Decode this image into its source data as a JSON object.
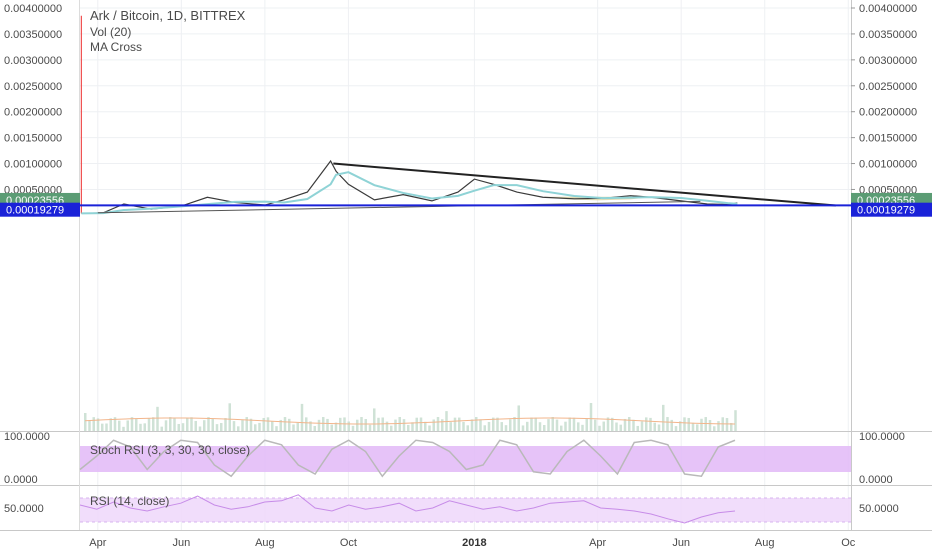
{
  "header": {
    "title": "Ark / Bitcoin, 1D, BITTREX",
    "indicators": [
      "Vol (20)",
      "MA Cross"
    ]
  },
  "colors": {
    "grid": "#eef0f3",
    "price_line": "#e9e9e9",
    "support_line": "#1a22d8",
    "trendline": "#222222",
    "stoch_band": "#e2b9f7",
    "rsi_band": "#efd9fb",
    "indicator_line": "#b9b9b9",
    "rsi_line": "#c78ce8",
    "current_badge": "#5b9c74",
    "support_badge": "#1a22d8",
    "candle_line": "#3a3a3a",
    "cup_fill": "#d9d29a",
    "ma_line": "#8fd3d6",
    "volume": "#cfe2d6",
    "volume_ma": "#f2b58b",
    "spike": "#f04e4e"
  },
  "chart_data": {
    "type": "line",
    "title": "Ark / Bitcoin, 1D, BITTREX",
    "price_axis": {
      "ticks": [
        "0.00400000",
        "0.00350000",
        "0.00300000",
        "0.00250000",
        "0.00200000",
        "0.00150000",
        "0.00100000",
        "0.00050000"
      ],
      "tick_values": [
        0.004,
        0.0035,
        0.003,
        0.0025,
        0.002,
        0.0015,
        0.001,
        0.0005
      ],
      "ylim": [
        0.0,
        0.0041
      ],
      "current_price": "0.00023556",
      "support_level": "0.00019279"
    },
    "time_axis": {
      "labels": [
        "Apr",
        "Jun",
        "Aug",
        "Oct",
        "2018",
        "Apr",
        "Jun",
        "Aug",
        "Oc"
      ],
      "bold_label": "2018"
    },
    "price_series": {
      "name": "ARK/BTC",
      "x": [
        "2017-03-20",
        "2017-04-05",
        "2017-04-20",
        "2017-05-10",
        "2017-06-01",
        "2017-06-20",
        "2017-07-10",
        "2017-08-01",
        "2017-08-15",
        "2017-09-01",
        "2017-09-18",
        "2017-09-22",
        "2017-10-01",
        "2017-10-20",
        "2017-11-10",
        "2017-12-01",
        "2017-12-20",
        "2018-01-01",
        "2018-01-15",
        "2018-02-01",
        "2018-02-20",
        "2018-03-15",
        "2018-04-05",
        "2018-04-25",
        "2018-05-10",
        "2018-06-01",
        "2018-06-20",
        "2018-07-05",
        "2018-07-12"
      ],
      "y": [
        4e-05,
        5e-05,
        0.00022,
        0.00012,
        0.00018,
        0.00035,
        0.00025,
        0.0002,
        0.0003,
        0.00045,
        0.00105,
        0.00085,
        0.0006,
        0.0003,
        0.0004,
        0.00028,
        0.00045,
        0.0007,
        0.0006,
        0.00045,
        0.00035,
        0.00032,
        0.00033,
        0.00038,
        0.00035,
        0.00028,
        0.00022,
        0.00021,
        0.00024
      ]
    },
    "spike": {
      "x": "2017-03-20",
      "high": 0.00385
    },
    "trendline": {
      "from": {
        "x": "2017-09-20",
        "y": 0.001
      },
      "to": {
        "x": "2018-09-22",
        "y": 0.00019
      }
    },
    "support_line": {
      "y": 0.00019279
    },
    "rising_line": {
      "from": {
        "x": "2017-04-01",
        "y": 5e-05
      },
      "to": {
        "x": "2018-06-15",
        "y": 0.00027
      }
    },
    "stoch_rsi": {
      "label": "Stoch RSI (3, 3, 30, 30, close)",
      "ticks": [
        "100.0000",
        "0.0000"
      ],
      "values": [
        30,
        60,
        95,
        80,
        30,
        70,
        95,
        90,
        40,
        15,
        60,
        95,
        85,
        40,
        20,
        75,
        95,
        70,
        15,
        60,
        95,
        90,
        70,
        30,
        40,
        95,
        85,
        25,
        20,
        70,
        95,
        60,
        20,
        90,
        95,
        85,
        20,
        15,
        80,
        95
      ]
    },
    "rsi": {
      "label": "RSI (14, close)",
      "ticks": [
        "50.0000"
      ],
      "band": [
        30,
        70
      ],
      "ylim": [
        20,
        80
      ],
      "values": [
        55,
        48,
        60,
        50,
        45,
        52,
        58,
        70,
        55,
        48,
        52,
        60,
        62,
        72,
        50,
        45,
        55,
        48,
        52,
        58,
        45,
        50,
        62,
        55,
        48,
        52,
        45,
        50,
        58,
        60,
        62,
        50,
        48,
        45,
        40,
        32,
        25,
        35,
        42,
        45
      ]
    }
  }
}
